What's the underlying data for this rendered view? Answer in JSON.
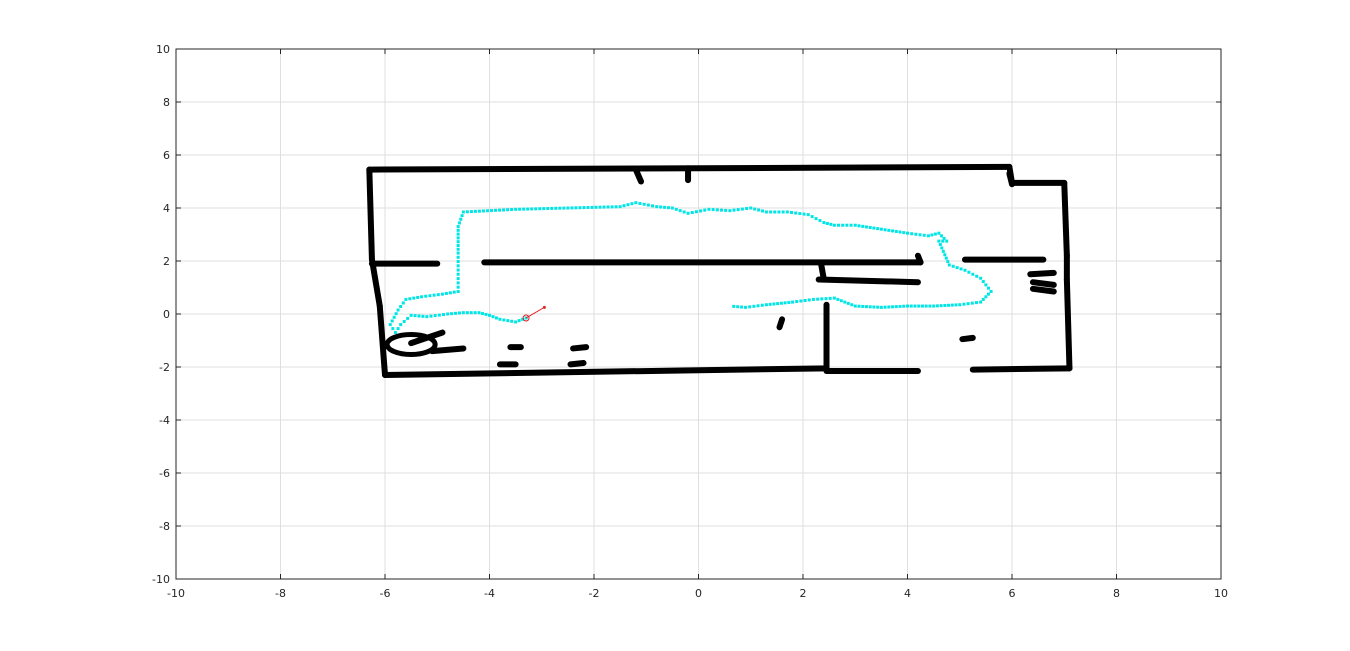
{
  "chart_data": {
    "type": "scatter",
    "title": "",
    "xlabel": "",
    "ylabel": "",
    "xlim": [
      -10,
      10
    ],
    "ylim": [
      -10,
      10
    ],
    "xticks": [
      -10,
      -8,
      -6,
      -4,
      -2,
      0,
      2,
      4,
      6,
      8,
      10
    ],
    "yticks": [
      -10,
      -8,
      -6,
      -4,
      -2,
      0,
      2,
      4,
      6,
      8,
      10
    ],
    "grid": true,
    "colors": {
      "map": "#000000",
      "trajectory": "#00e6e6",
      "robot": "#e02020",
      "grid": "#dfdfdf",
      "axes": "#262626"
    },
    "series": [
      {
        "role": "occupancy-map",
        "segments": [
          [
            [
              -6.3,
              5.45
            ],
            [
              5.95,
              5.55
            ]
          ],
          [
            [
              5.95,
              5.55
            ],
            [
              6.0,
              4.95
            ]
          ],
          [
            [
              6.0,
              4.95
            ],
            [
              7.0,
              4.95
            ]
          ],
          [
            [
              7.0,
              4.95
            ],
            [
              7.05,
              2.2
            ]
          ],
          [
            [
              7.05,
              2.2
            ],
            [
              7.05,
              1.3
            ]
          ],
          [
            [
              7.05,
              1.3
            ],
            [
              7.1,
              -2.05
            ]
          ],
          [
            [
              7.1,
              -2.05
            ],
            [
              5.25,
              -2.1
            ]
          ],
          [
            [
              -6.3,
              5.45
            ],
            [
              -6.25,
              2.05
            ]
          ],
          [
            [
              -6.25,
              2.05
            ],
            [
              -6.1,
              0.3
            ]
          ],
          [
            [
              -6.1,
              0.3
            ],
            [
              -6.0,
              -2.3
            ]
          ],
          [
            [
              -6.0,
              -2.3
            ],
            [
              2.45,
              -2.05
            ]
          ],
          [
            [
              2.45,
              -2.05
            ],
            [
              2.45,
              0.35
            ]
          ],
          [
            [
              2.45,
              -2.15
            ],
            [
              4.2,
              -2.15
            ]
          ],
          [
            [
              -6.25,
              1.9
            ],
            [
              -5.0,
              1.9
            ]
          ],
          [
            [
              -4.1,
              1.95
            ],
            [
              4.25,
              1.95
            ]
          ],
          [
            [
              4.25,
              1.95
            ],
            [
              4.2,
              2.2
            ]
          ],
          [
            [
              5.1,
              2.05
            ],
            [
              6.6,
              2.05
            ]
          ],
          [
            [
              2.35,
              1.85
            ],
            [
              2.4,
              1.3
            ]
          ],
          [
            [
              2.3,
              1.3
            ],
            [
              4.2,
              1.2
            ]
          ],
          [
            [
              -5.1,
              -1.4
            ],
            [
              -4.5,
              -1.3
            ]
          ],
          [
            [
              -5.5,
              -1.1
            ],
            [
              -4.9,
              -0.7
            ]
          ],
          [
            [
              -3.6,
              -1.25
            ],
            [
              -3.4,
              -1.25
            ]
          ],
          [
            [
              -2.4,
              -1.3
            ],
            [
              -2.15,
              -1.25
            ]
          ],
          [
            [
              -2.45,
              -1.9
            ],
            [
              -2.2,
              -1.85
            ]
          ],
          [
            [
              -3.8,
              -1.9
            ],
            [
              -3.5,
              -1.9
            ]
          ],
          [
            [
              1.55,
              -0.5
            ],
            [
              1.6,
              -0.2
            ]
          ],
          [
            [
              5.05,
              -0.95
            ],
            [
              5.25,
              -0.9
            ]
          ],
          [
            [
              6.35,
              1.5
            ],
            [
              6.8,
              1.55
            ]
          ],
          [
            [
              6.4,
              1.2
            ],
            [
              6.8,
              1.1
            ]
          ],
          [
            [
              6.4,
              0.95
            ],
            [
              6.8,
              0.85
            ]
          ],
          [
            [
              -1.2,
              5.45
            ],
            [
              -1.1,
              5.0
            ]
          ],
          [
            [
              -0.2,
              5.5
            ],
            [
              -0.2,
              5.05
            ]
          ],
          [
            [
              5.95,
              5.3
            ],
            [
              6.0,
              4.9
            ]
          ]
        ]
      },
      {
        "role": "trajectory",
        "x": [
          -3.3,
          -3.5,
          -3.8,
          -4.0,
          -4.2,
          -4.5,
          -4.8,
          -5.2,
          -5.5,
          -5.7,
          -5.8,
          -5.9,
          -5.75,
          -5.6,
          -5.3,
          -4.9,
          -4.6,
          -4.6,
          -4.6,
          -4.6,
          -4.5,
          -3.5,
          -2.5,
          -1.5,
          -1.2,
          -0.8,
          -0.5,
          -0.2,
          0.2,
          0.6,
          1.0,
          1.3,
          1.7,
          2.1,
          2.4,
          2.6,
          3.0,
          3.5,
          4.0,
          4.4,
          4.6,
          4.75,
          4.6,
          4.8,
          5.1,
          5.4,
          5.6,
          5.4,
          5.0,
          4.5,
          4.0,
          3.5,
          3.0,
          2.6,
          2.2,
          1.8,
          1.3,
          0.9,
          0.6
        ],
        "y": [
          -0.15,
          -0.3,
          -0.2,
          -0.05,
          0.05,
          0.05,
          0.0,
          -0.1,
          -0.05,
          -0.4,
          -0.7,
          -0.4,
          0.15,
          0.55,
          0.65,
          0.75,
          0.85,
          1.5,
          2.3,
          3.3,
          3.85,
          3.95,
          4.0,
          4.05,
          4.2,
          4.05,
          4.0,
          3.8,
          3.95,
          3.9,
          4.0,
          3.85,
          3.85,
          3.75,
          3.45,
          3.35,
          3.35,
          3.2,
          3.05,
          2.95,
          3.05,
          2.75,
          2.75,
          1.85,
          1.65,
          1.35,
          0.85,
          0.45,
          0.35,
          0.3,
          0.3,
          0.25,
          0.3,
          0.6,
          0.55,
          0.45,
          0.35,
          0.25,
          0.3
        ]
      },
      {
        "role": "robot-pose",
        "x": [
          -3.3,
          -2.95
        ],
        "y": [
          -0.15,
          0.25
        ]
      }
    ]
  }
}
